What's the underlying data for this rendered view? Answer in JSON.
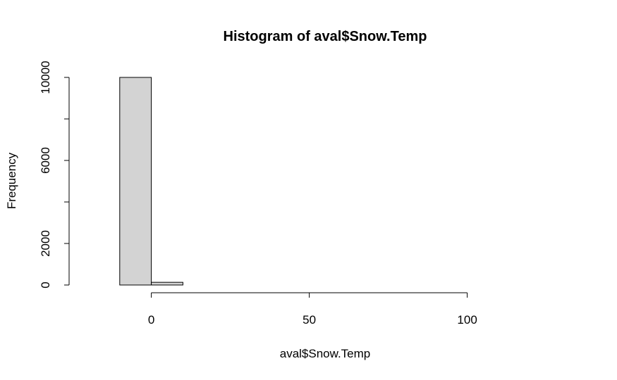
{
  "chart_data": {
    "type": "bar",
    "title": "Histogram of aval$Snow.Temp",
    "xlabel": "aval$Snow.Temp",
    "ylabel": "Frequency",
    "bins": [
      {
        "start": -10,
        "end": 0,
        "count": 10000
      },
      {
        "start": 0,
        "end": 10,
        "count": 130
      },
      {
        "start": 10,
        "end": 20,
        "count": 0
      },
      {
        "start": 20,
        "end": 30,
        "count": 0
      },
      {
        "start": 30,
        "end": 40,
        "count": 0
      },
      {
        "start": 40,
        "end": 50,
        "count": 0
      },
      {
        "start": 50,
        "end": 60,
        "count": 0
      },
      {
        "start": 60,
        "end": 70,
        "count": 0
      },
      {
        "start": 70,
        "end": 80,
        "count": 0
      },
      {
        "start": 80,
        "end": 90,
        "count": 0
      },
      {
        "start": 90,
        "end": 100,
        "count": 0
      },
      {
        "start": 100,
        "end": 110,
        "count": 0
      },
      {
        "start": 110,
        "end": 120,
        "count": 0
      },
      {
        "start": 120,
        "end": 130,
        "count": 0
      }
    ],
    "x_ticks": [
      0,
      50,
      100
    ],
    "x_tick_labels": [
      "0",
      "50",
      "100"
    ],
    "y_ticks": [
      0,
      2000,
      6000,
      10000
    ],
    "y_tick_labels": [
      "0",
      "2000",
      "6000",
      "10000"
    ],
    "y_minor_ticks": [
      4000,
      8000
    ],
    "xlim": [
      -20,
      130
    ],
    "ylim": [
      0,
      10000
    ],
    "bar_fill": "#d3d3d3",
    "bar_stroke": "#000000",
    "grid": false
  }
}
